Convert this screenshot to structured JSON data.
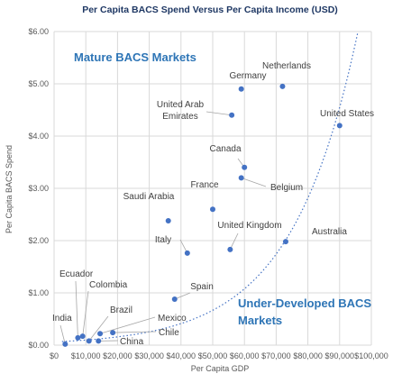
{
  "chart_data": {
    "type": "scatter",
    "title": "Per Capita BACS Spend Versus Per Capita Income (USD)",
    "xlabel": "Per Capita GDP",
    "ylabel": "Per Capita BACS Spend",
    "xlim": [
      0,
      100000
    ],
    "ylim": [
      0,
      6
    ],
    "x_ticks": [
      "$0",
      "$10,000",
      "$20,000",
      "$30,000",
      "$40,000",
      "$50,000",
      "$60,000",
      "$70,000",
      "$80,000",
      "$90,000",
      "$100,000"
    ],
    "y_ticks": [
      "$0.00",
      "$1.00",
      "$2.00",
      "$3.00",
      "$4.00",
      "$5.00",
      "$6.00"
    ],
    "grid": true,
    "trendline": "exponential (dotted)",
    "annotations": [
      "Mature BACS Markets",
      "Under-Developed BACS",
      "Markets"
    ],
    "points": [
      {
        "label": "Netherlands",
        "x": 72000,
        "y": 4.95
      },
      {
        "label": "Germany",
        "x": 59000,
        "y": 4.9
      },
      {
        "label": "United Arab Emirates",
        "x": 56000,
        "y": 4.4,
        "label_lines": [
          "United Arab",
          "Emirates"
        ]
      },
      {
        "label": "United States",
        "x": 90000,
        "y": 4.2
      },
      {
        "label": "Canada",
        "x": 60000,
        "y": 3.4
      },
      {
        "label": "Belgium",
        "x": 59000,
        "y": 3.2
      },
      {
        "label": "France",
        "x": 50000,
        "y": 2.6
      },
      {
        "label": "Saudi Arabia",
        "x": 36000,
        "y": 2.38
      },
      {
        "label": "United Kingdom",
        "x": 55500,
        "y": 1.83
      },
      {
        "label": "Australia",
        "x": 73000,
        "y": 1.98
      },
      {
        "label": "Italy",
        "x": 42000,
        "y": 1.76
      },
      {
        "label": "Spain",
        "x": 38000,
        "y": 0.88
      },
      {
        "label": "Mexico",
        "x": 14500,
        "y": 0.22
      },
      {
        "label": "Chile",
        "x": 18500,
        "y": 0.24
      },
      {
        "label": "China",
        "x": 14000,
        "y": 0.08
      },
      {
        "label": "Brazil",
        "x": 11000,
        "y": 0.08
      },
      {
        "label": "Colombia",
        "x": 9000,
        "y": 0.17
      },
      {
        "label": "Ecuador",
        "x": 7500,
        "y": 0.14
      },
      {
        "label": "India",
        "x": 3500,
        "y": 0.02
      }
    ]
  }
}
